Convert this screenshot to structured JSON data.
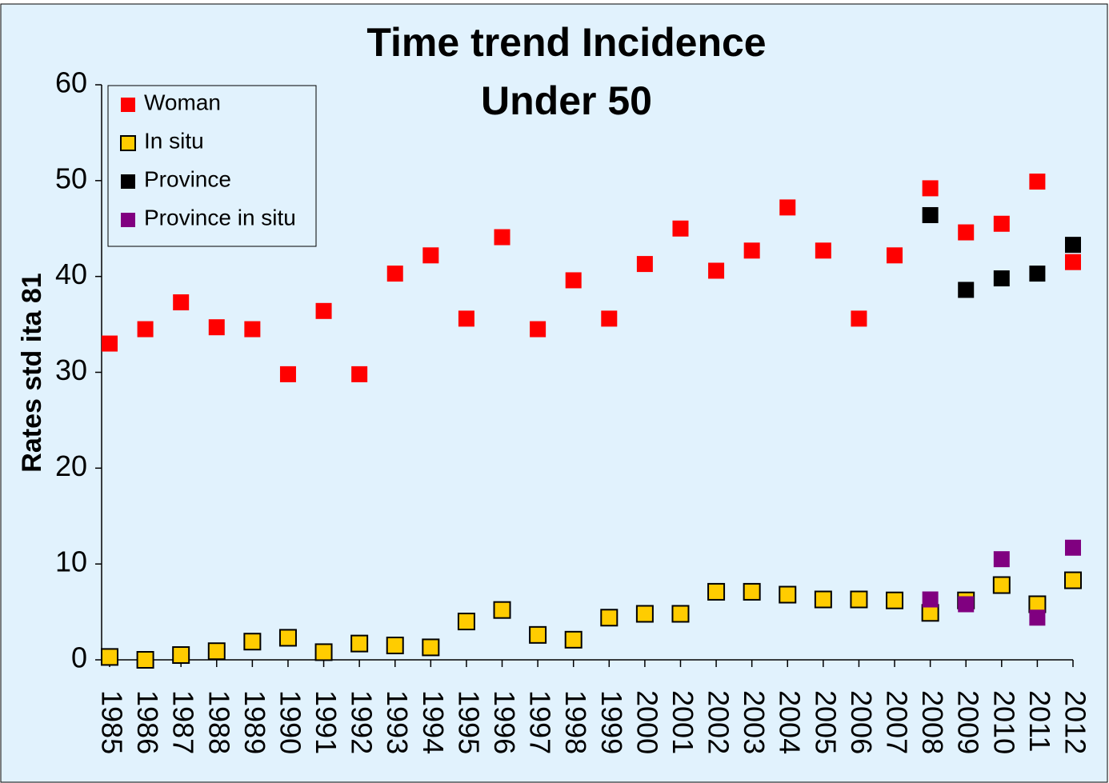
{
  "chart_data": {
    "type": "scatter",
    "title": "Time trend Incidence",
    "subtitle": "Under 50",
    "y_label": "Rates std ita 81",
    "categories": [
      "1985",
      "1986",
      "1987",
      "1988",
      "1989",
      "1990",
      "1991",
      "1992",
      "1993",
      "1994",
      "1995",
      "1996",
      "1997",
      "1998",
      "1999",
      "2000",
      "2001",
      "2002",
      "2003",
      "2004",
      "2005",
      "2006",
      "2007",
      "2008",
      "2009",
      "2010",
      "2011",
      "2012"
    ],
    "series": [
      {
        "name": "Woman",
        "color": "#ff0000",
        "values": [
          33.0,
          34.5,
          37.3,
          34.7,
          34.5,
          29.8,
          36.4,
          29.8,
          40.3,
          42.2,
          35.6,
          44.1,
          34.5,
          39.6,
          35.6,
          41.3,
          45.0,
          40.6,
          42.7,
          47.2,
          42.7,
          35.6,
          42.2,
          49.2,
          44.6,
          45.5,
          49.9,
          41.5
        ]
      },
      {
        "name": "In situ",
        "color": "#ffcc00",
        "values": [
          0.3,
          0.0,
          0.5,
          0.9,
          1.9,
          2.3,
          0.8,
          1.7,
          1.5,
          1.3,
          4.0,
          5.2,
          2.6,
          2.1,
          4.4,
          4.8,
          4.8,
          7.1,
          7.1,
          6.8,
          6.3,
          6.3,
          6.2,
          4.9,
          6.2,
          7.8,
          5.8,
          8.3
        ]
      },
      {
        "name": "Province",
        "color": "#000000",
        "values": [
          null,
          null,
          null,
          null,
          null,
          null,
          null,
          null,
          null,
          null,
          null,
          null,
          null,
          null,
          null,
          null,
          null,
          null,
          null,
          null,
          null,
          null,
          null,
          46.4,
          38.6,
          39.8,
          40.3,
          43.3
        ]
      },
      {
        "name": "Province in situ",
        "color": "#800080",
        "values": [
          null,
          null,
          null,
          null,
          null,
          null,
          null,
          null,
          null,
          null,
          null,
          null,
          null,
          null,
          null,
          null,
          null,
          null,
          null,
          null,
          null,
          null,
          null,
          6.3,
          5.8,
          10.5,
          4.4,
          11.7
        ]
      }
    ],
    "ylim": [
      0,
      60
    ],
    "yticks": [
      0,
      10,
      20,
      30,
      40,
      50,
      60
    ],
    "legend": "upper-left"
  }
}
